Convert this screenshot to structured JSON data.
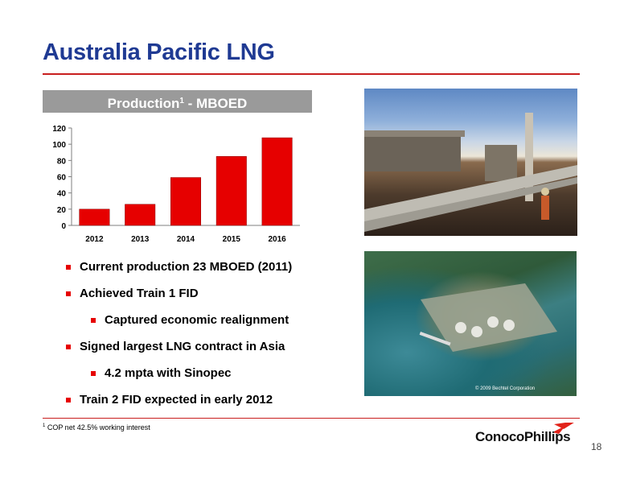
{
  "title": "Australia Pacific LNG",
  "chart_header": {
    "text": "Production",
    "sup": "1",
    "suffix": " - MBOED"
  },
  "chart_data": {
    "type": "bar",
    "categories": [
      "2012",
      "2013",
      "2014",
      "2015",
      "2016"
    ],
    "values": [
      20,
      26,
      59,
      85,
      108
    ],
    "yticks": [
      0,
      20,
      40,
      60,
      80,
      100,
      120
    ],
    "ylim": [
      0,
      120
    ],
    "bar_color": "#e60000",
    "grid": false,
    "legend": false
  },
  "bullets": [
    {
      "text": "Current production 23 MBOED (2011)"
    },
    {
      "text": "Achieved Train 1 FID"
    },
    {
      "text": "Captured economic realignment"
    },
    {
      "text": "Signed largest LNG contract in Asia"
    },
    {
      "text": "4.2 mpta with Sinopec"
    },
    {
      "text": "Train 2 FID expected in early 2012"
    }
  ],
  "footnote": {
    "sup": "1",
    "text": " COP net 42.5% working interest"
  },
  "logo": {
    "text": "ConocoPhillips"
  },
  "photo2_caption": "© 2009 Bechtel Corporation",
  "page_number": "18",
  "colors": {
    "title": "#1f3a93",
    "accent": "#c81e1e",
    "header_bg": "#9a9a9a"
  }
}
